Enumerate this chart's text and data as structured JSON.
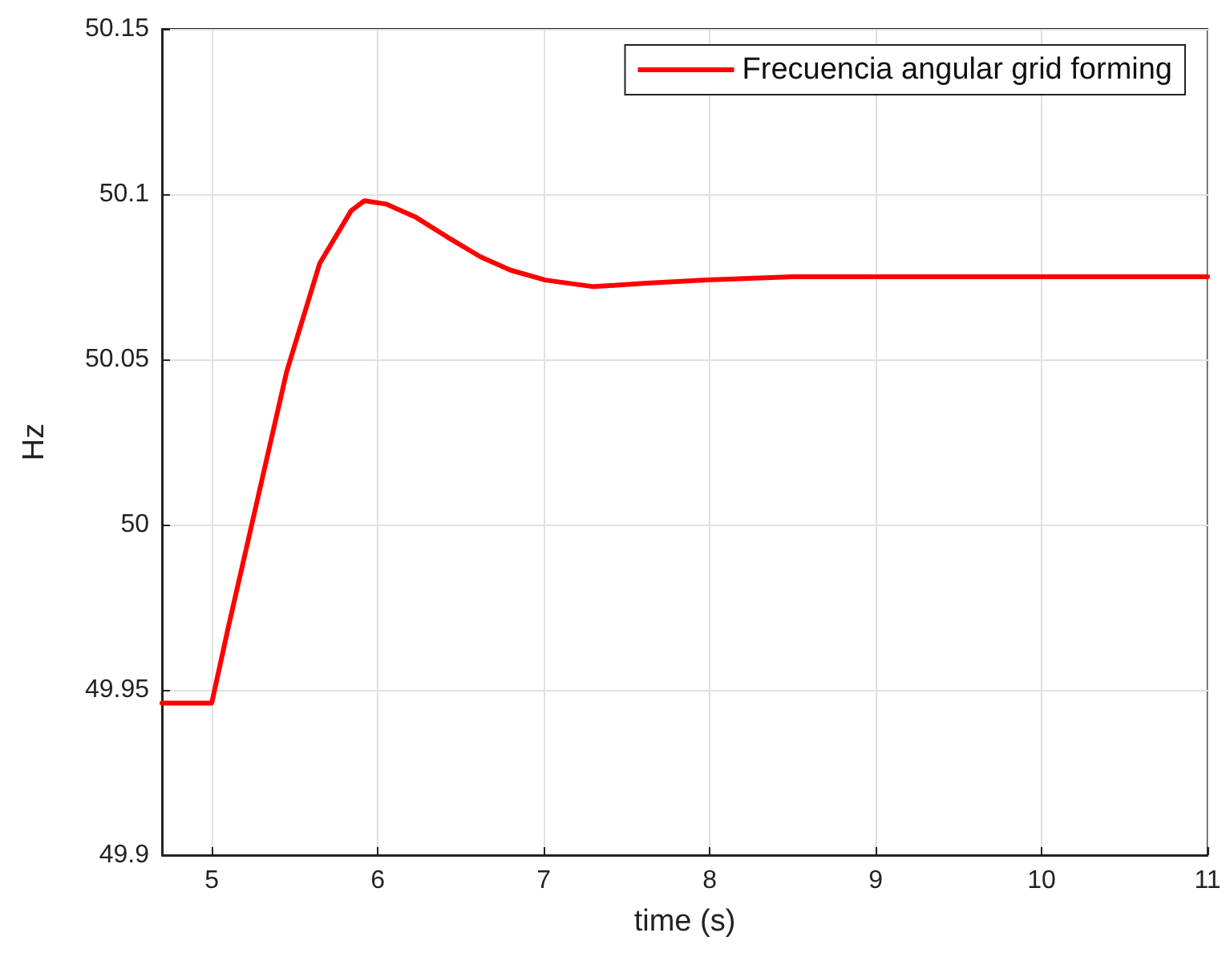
{
  "chart_data": {
    "type": "line",
    "xlabel": "time (s)",
    "ylabel": "Hz",
    "xlim": [
      4.7,
      11
    ],
    "xticks": [
      5,
      6,
      7,
      8,
      9,
      10,
      11
    ],
    "ylim": [
      49.9,
      50.15
    ],
    "yticks": [
      49.9,
      49.95,
      50,
      50.05,
      50.1,
      50.15
    ],
    "grid": true,
    "legend": "top right",
    "marker": "none",
    "line_style": "solid",
    "series": [
      {
        "name": "Frecuencia angular grid forming",
        "color": "#ff0000",
        "x": [
          4.7,
          5.0,
          5.1,
          5.2,
          5.3,
          5.45,
          5.65,
          5.84,
          5.92,
          6.05,
          6.23,
          6.42,
          6.62,
          6.8,
          7.01,
          7.3,
          7.6,
          7.98,
          8.5,
          9.0,
          10.0,
          11.0
        ],
        "values": [
          49.946,
          49.946,
          49.969,
          49.991,
          50.013,
          50.046,
          50.079,
          50.095,
          50.098,
          50.097,
          50.093,
          50.087,
          50.081,
          50.077,
          50.074,
          50.072,
          50.073,
          50.074,
          50.075,
          50.075,
          50.075,
          50.075
        ]
      }
    ]
  }
}
